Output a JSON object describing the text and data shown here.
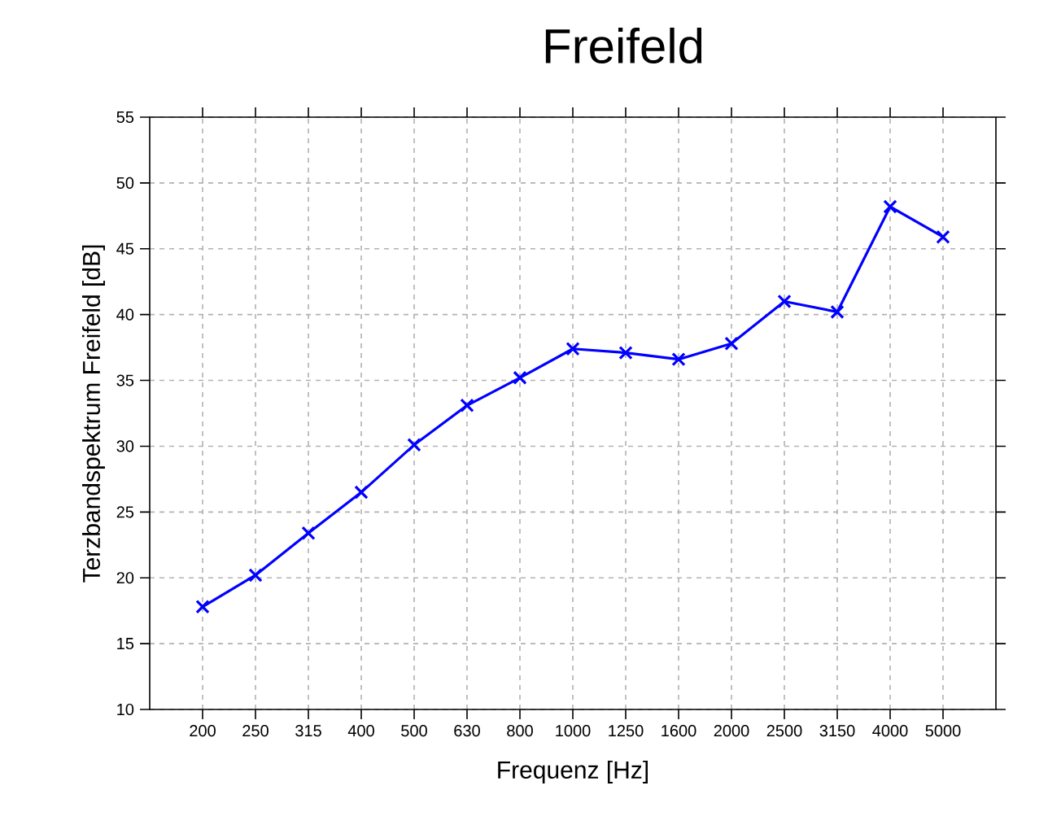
{
  "chart_data": {
    "type": "line",
    "title": "Freifeld",
    "xlabel": "Frequenz [Hz]",
    "ylabel": "Terzbandspektrum Freifeld [dB]",
    "categories": [
      "200",
      "250",
      "315",
      "400",
      "500",
      "630",
      "800",
      "1000",
      "1250",
      "1600",
      "2000",
      "2500",
      "3150",
      "4000",
      "5000"
    ],
    "series": [
      {
        "color": "#0000ff",
        "values": [
          17.8,
          20.2,
          23.4,
          26.5,
          30.1,
          33.1,
          35.2,
          37.4,
          37.1,
          36.6,
          37.8,
          41.0,
          40.2,
          48.2,
          45.9
        ]
      }
    ],
    "ylim": [
      10,
      55
    ],
    "yticks": [
      10,
      15,
      20,
      25,
      30,
      35,
      40,
      45,
      50,
      55
    ],
    "grid": true,
    "marker": "cross",
    "line_style": "solid"
  }
}
